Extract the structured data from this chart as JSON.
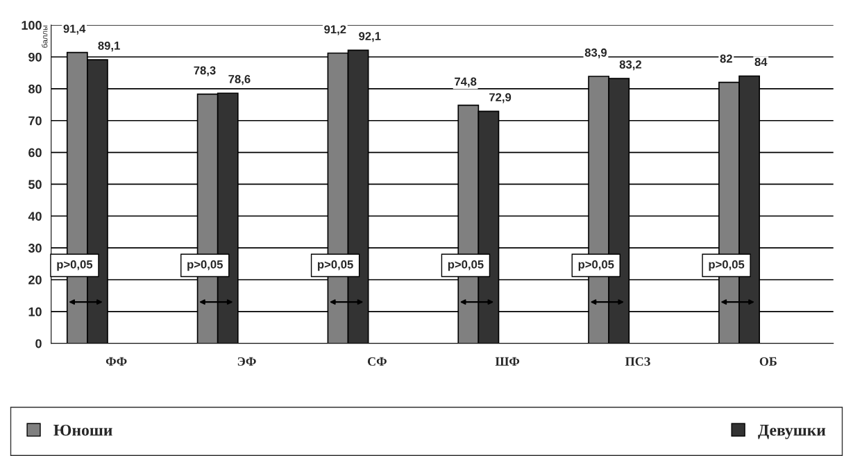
{
  "chart_data": {
    "type": "bar",
    "ylabel": "баллы",
    "categories": [
      "ФФ",
      "ЭФ",
      "СФ",
      "ШФ",
      "ПСЗ",
      "ОБ"
    ],
    "series": [
      {
        "name": "Юноши",
        "color": "#808080",
        "values": [
          91.4,
          78.3,
          91.2,
          74.8,
          83.9,
          82
        ],
        "value_labels": [
          "91,4",
          "78,3",
          "91,2",
          "74,8",
          "83,9",
          "82"
        ]
      },
      {
        "name": "Девушки",
        "color": "#333333",
        "values": [
          89.1,
          78.6,
          92.1,
          72.9,
          83.2,
          84
        ],
        "value_labels": [
          "89,1",
          "78,6",
          "92,1",
          "72,9",
          "83,2",
          "84"
        ]
      }
    ],
    "ylim": [
      0,
      100
    ],
    "yticks": [
      0,
      10,
      20,
      30,
      40,
      50,
      60,
      70,
      80,
      90,
      100
    ],
    "grid": "y",
    "legend": "bottom",
    "annotations": [
      "p>0,05",
      "p>0,05",
      "p>0,05",
      "p>0,05",
      "p>0,05",
      "p>0,05"
    ]
  }
}
